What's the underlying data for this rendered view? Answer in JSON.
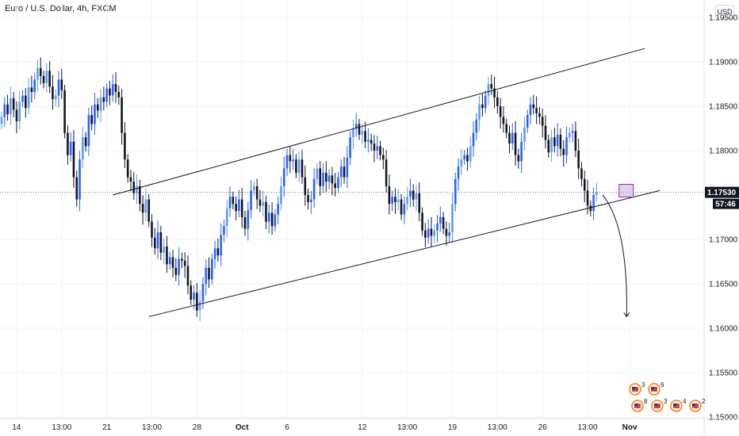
{
  "header": {
    "symbol_title": "Euro / U.S. Dollar, 4h, FXCM",
    "currency_button": "USD"
  },
  "colors": {
    "up": "#2962ff",
    "down": "#131722",
    "up_light": "#5b9cf6",
    "grid": "#f0f3fa",
    "line": "#131722",
    "highlight": "#b39ddb"
  },
  "chart_data": {
    "type": "candlestick",
    "symbol": "EURUSD",
    "interval": "4h",
    "source": "FXCM",
    "ylim": [
      1.1505,
      1.1955
    ],
    "y_ticks": [
      "1.19500",
      "1.19000",
      "1.18500",
      "1.18000",
      "1.17500",
      "1.17000",
      "1.16500",
      "1.16000",
      "1.15500",
      "1.15000"
    ],
    "y_tick_values": [
      1.195,
      1.19,
      1.185,
      1.18,
      1.175,
      1.17,
      1.165,
      1.16,
      1.155,
      1.15
    ],
    "x_ticks": [
      {
        "label": "14",
        "index": 5,
        "bold": false
      },
      {
        "label": "13:00",
        "index": 20,
        "bold": false
      },
      {
        "label": "21",
        "index": 35,
        "bold": false
      },
      {
        "label": "13:00",
        "index": 50,
        "bold": false
      },
      {
        "label": "28",
        "index": 65,
        "bold": false
      },
      {
        "label": "Oct",
        "index": 80,
        "bold": true
      },
      {
        "label": "6",
        "index": 95,
        "bold": false
      },
      {
        "label": "12",
        "index": 120,
        "bold": false
      },
      {
        "label": "13:00",
        "index": 135,
        "bold": false
      },
      {
        "label": "19",
        "index": 150,
        "bold": false
      },
      {
        "label": "13:00",
        "index": 165,
        "bold": false
      },
      {
        "label": "26",
        "index": 180,
        "bold": false
      },
      {
        "label": "13:00",
        "index": 195,
        "bold": false
      },
      {
        "label": "Nov",
        "index": 209,
        "bold": true
      }
    ],
    "current_price": "1.17530",
    "current_price_value": 1.1753,
    "countdown": "57:46",
    "closes": [
      1.1838,
      1.1852,
      1.1841,
      1.1859,
      1.1846,
      1.1833,
      1.1855,
      1.1862,
      1.1848,
      1.1871,
      1.1866,
      1.188,
      1.1893,
      1.1884,
      1.1876,
      1.189,
      1.1872,
      1.1858,
      1.1862,
      1.188,
      1.1868,
      1.182,
      1.1795,
      1.181,
      1.177,
      1.1745,
      1.179,
      1.1815,
      1.1805,
      1.184,
      1.183,
      1.1852,
      1.1845,
      1.186,
      1.1855,
      1.187,
      1.1862,
      1.1875,
      1.1866,
      1.186,
      1.182,
      1.179,
      1.177,
      1.1765,
      1.1752,
      1.176,
      1.174,
      1.173,
      1.1745,
      1.172,
      1.1702,
      1.169,
      1.1708,
      1.1685,
      1.1692,
      1.1672,
      1.168,
      1.1668,
      1.166,
      1.1678,
      1.1676,
      1.167,
      1.1648,
      1.1632,
      1.164,
      1.162,
      1.163,
      1.165,
      1.1668,
      1.1655,
      1.1678,
      1.169,
      1.1682,
      1.1705,
      1.1715,
      1.1735,
      1.1748,
      1.174,
      1.1732,
      1.1745,
      1.1725,
      1.1712,
      1.1733,
      1.1755,
      1.176,
      1.1745,
      1.1738,
      1.1742,
      1.172,
      1.173,
      1.1715,
      1.1728,
      1.174,
      1.176,
      1.178,
      1.1795,
      1.1788,
      1.179,
      1.1775,
      1.179,
      1.177,
      1.175,
      1.1742,
      1.1745,
      1.1768,
      1.178,
      1.176,
      1.1775,
      1.1765,
      1.1772,
      1.1763,
      1.1758,
      1.177,
      1.1782,
      1.177,
      1.1792,
      1.1815,
      1.1825,
      1.183,
      1.1818,
      1.1822,
      1.181,
      1.1812,
      1.1808,
      1.18,
      1.1805,
      1.1795,
      1.179,
      1.176,
      1.174,
      1.1748,
      1.1742,
      1.1745,
      1.1728,
      1.174,
      1.1748,
      1.1755,
      1.1745,
      1.1752,
      1.173,
      1.171,
      1.1702,
      1.1712,
      1.1704,
      1.171,
      1.1718,
      1.1725,
      1.1712,
      1.1704,
      1.1708,
      1.174,
      1.1768,
      1.1782,
      1.179,
      1.1795,
      1.1788,
      1.1805,
      1.182,
      1.1835,
      1.1852,
      1.1848,
      1.1862,
      1.1875,
      1.187,
      1.186,
      1.185,
      1.1838,
      1.183,
      1.182,
      1.1808,
      1.182,
      1.1795,
      1.1788,
      1.181,
      1.1826,
      1.184,
      1.1852,
      1.1848,
      1.1842,
      1.1838,
      1.1828,
      1.1812,
      1.1798,
      1.1815,
      1.1805,
      1.1818,
      1.1802,
      1.1795,
      1.1815,
      1.182,
      1.1822,
      1.18,
      1.178,
      1.1768,
      1.1755,
      1.1738,
      1.1732,
      1.175,
      1.1753
    ],
    "trendline_upper": {
      "from": {
        "index": 37,
        "price": 1.175
      },
      "to": {
        "index": 214,
        "price": 1.1915
      }
    },
    "trendline_lower": {
      "from": {
        "index": 49,
        "price": 1.1613
      },
      "to": {
        "index": 219,
        "price": 1.1755
      }
    },
    "projection_arrow": {
      "from": {
        "index": 200,
        "price": 1.175
      },
      "to": {
        "index": 208,
        "price": 1.1613
      }
    },
    "events": [
      {
        "group": "top",
        "count": "3"
      },
      {
        "group": "top",
        "count": "6"
      },
      {
        "group": "bottom",
        "count": "8"
      },
      {
        "group": "bottom",
        "count": "3"
      },
      {
        "group": "bottom",
        "count": "4"
      },
      {
        "group": "bottom",
        "count": "2"
      }
    ]
  }
}
